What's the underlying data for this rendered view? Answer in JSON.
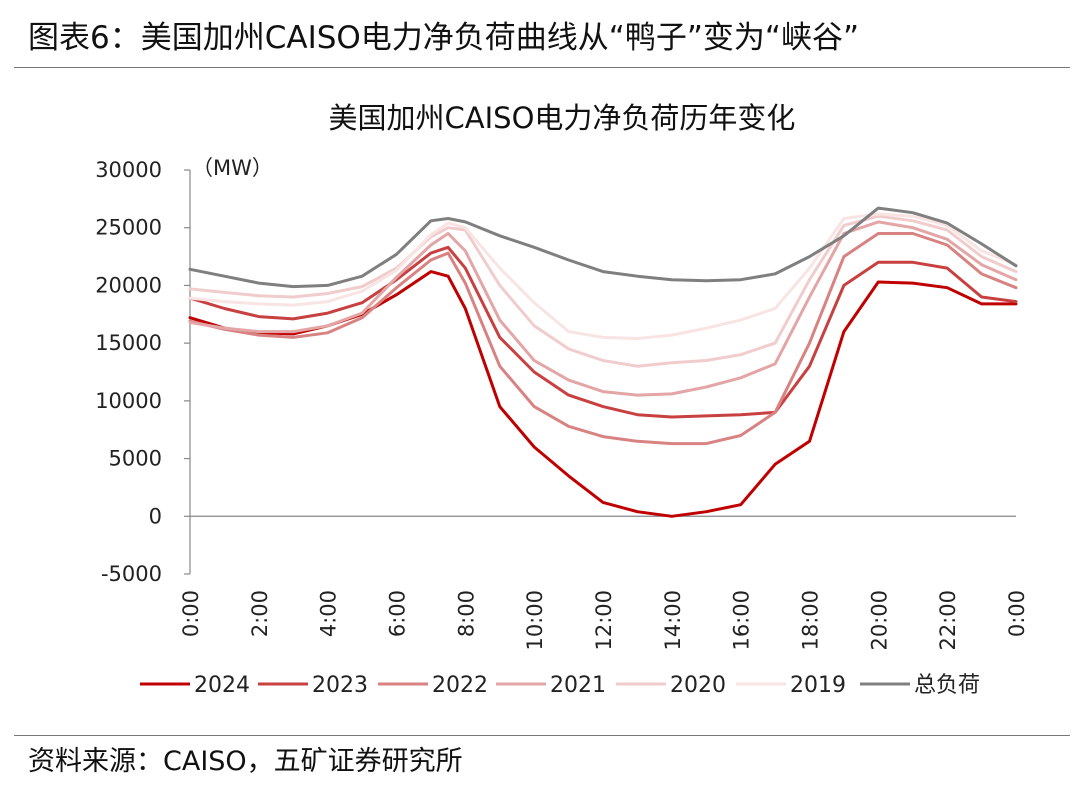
{
  "figure": {
    "title": "图表6：美国加州CAISO电力净负荷曲线从“鸭子”变为“峡谷”",
    "source": "资料来源：CAISO，五矿证券研究所"
  },
  "chart_data": {
    "type": "line",
    "title": "美国加州CAISO电力净负荷历年变化",
    "unit_label": "（MW）",
    "xlabel": "",
    "ylabel": "",
    "ylim": [
      -5000,
      30000
    ],
    "yticks": [
      -5000,
      0,
      5000,
      10000,
      15000,
      20000,
      25000,
      30000
    ],
    "ytick_labels": [
      "-5000",
      "0",
      "5000",
      "10000",
      "15000",
      "20000",
      "25000",
      "30000"
    ],
    "x_hours": [
      0,
      1,
      2,
      3,
      4,
      5,
      6,
      7,
      7.5,
      8,
      9,
      10,
      11,
      12,
      13,
      14,
      15,
      16,
      17,
      18,
      19,
      20,
      21,
      22,
      23,
      24
    ],
    "xtick_labels": [
      "0:00",
      "2:00",
      "4:00",
      "6:00",
      "8:00",
      "10:00",
      "12:00",
      "14:00",
      "16:00",
      "18:00",
      "20:00",
      "22:00",
      "0:00"
    ],
    "legend_position": "bottom",
    "series": [
      {
        "name": "2024",
        "color": "#c00000",
        "values": [
          17200,
          16300,
          15900,
          15800,
          16500,
          17500,
          19200,
          21200,
          20800,
          18000,
          9500,
          6000,
          3500,
          1200,
          400,
          0,
          400,
          1000,
          4500,
          6500,
          16000,
          20300,
          20200,
          19800,
          18400,
          18400
        ]
      },
      {
        "name": "2023",
        "color": "#c84040",
        "values": [
          18900,
          18000,
          17300,
          17100,
          17600,
          18500,
          20500,
          22800,
          23300,
          21500,
          15500,
          12500,
          10500,
          9500,
          8800,
          8600,
          8700,
          8800,
          9000,
          13000,
          20000,
          22000,
          22000,
          21500,
          19000,
          18600
        ]
      },
      {
        "name": "2022",
        "color": "#d88282",
        "values": [
          16900,
          16200,
          15700,
          15500,
          15900,
          17200,
          19800,
          22200,
          22800,
          20200,
          13000,
          9500,
          7800,
          6900,
          6500,
          6300,
          6300,
          7000,
          9000,
          15000,
          22500,
          24500,
          24500,
          23500,
          21000,
          19800
        ]
      },
      {
        "name": "2021",
        "color": "#e3a5a5",
        "values": [
          16800,
          16300,
          16000,
          16000,
          16500,
          17600,
          20700,
          23500,
          24500,
          23000,
          17000,
          13500,
          11800,
          10800,
          10500,
          10600,
          11200,
          12000,
          13200,
          19000,
          24500,
          25500,
          25000,
          24000,
          21800,
          20500
        ]
      },
      {
        "name": "2020",
        "color": "#f1cccc",
        "values": [
          19700,
          19400,
          19100,
          19000,
          19300,
          19900,
          21500,
          24200,
          25000,
          24800,
          20000,
          16500,
          14500,
          13500,
          13000,
          13300,
          13500,
          14000,
          15000,
          20500,
          25200,
          26000,
          25600,
          24800,
          22500,
          21200
        ]
      },
      {
        "name": "2019",
        "color": "#f9e4e4",
        "values": [
          18900,
          18600,
          18400,
          18300,
          18600,
          19500,
          21300,
          24400,
          25400,
          25000,
          21500,
          18500,
          16000,
          15500,
          15400,
          15700,
          16300,
          17000,
          18000,
          21500,
          25800,
          26200,
          26000,
          25200,
          23000,
          21800
        ]
      },
      {
        "name": "总负荷",
        "color": "#7f7f7f",
        "values": [
          21400,
          20800,
          20200,
          19900,
          20000,
          20800,
          22700,
          25600,
          25800,
          25500,
          24300,
          23300,
          22200,
          21200,
          20800,
          20500,
          20400,
          20500,
          21000,
          22500,
          24300,
          26700,
          26300,
          25400,
          23600,
          21700
        ]
      }
    ]
  }
}
